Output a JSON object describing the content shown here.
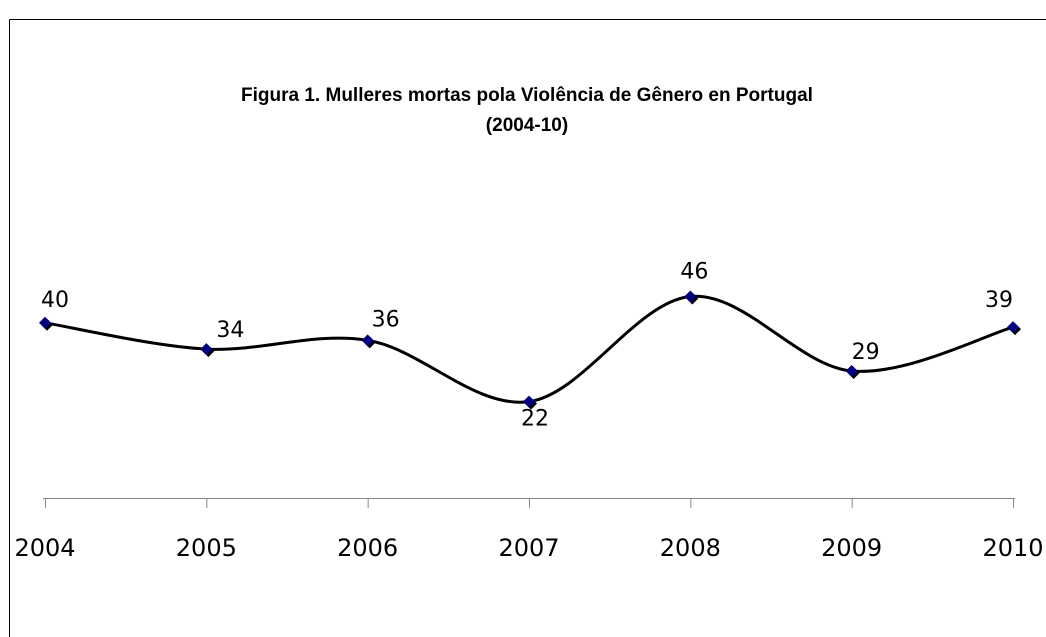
{
  "chart_data": {
    "type": "line",
    "title": "Figura 1. Mulleres mortas pola Violência de Gênero en Portugal",
    "subtitle": "(2004-10)",
    "categories": [
      "2004",
      "2005",
      "2006",
      "2007",
      "2008",
      "2009",
      "2010"
    ],
    "series": [
      {
        "name": "Mulleres mortas",
        "color": "#000000",
        "values": [
          40,
          34,
          36,
          22,
          46,
          29,
          39
        ]
      }
    ],
    "marker_color": "#000080",
    "ylim": [
      0,
      50
    ],
    "smooth": true,
    "grid": false
  }
}
